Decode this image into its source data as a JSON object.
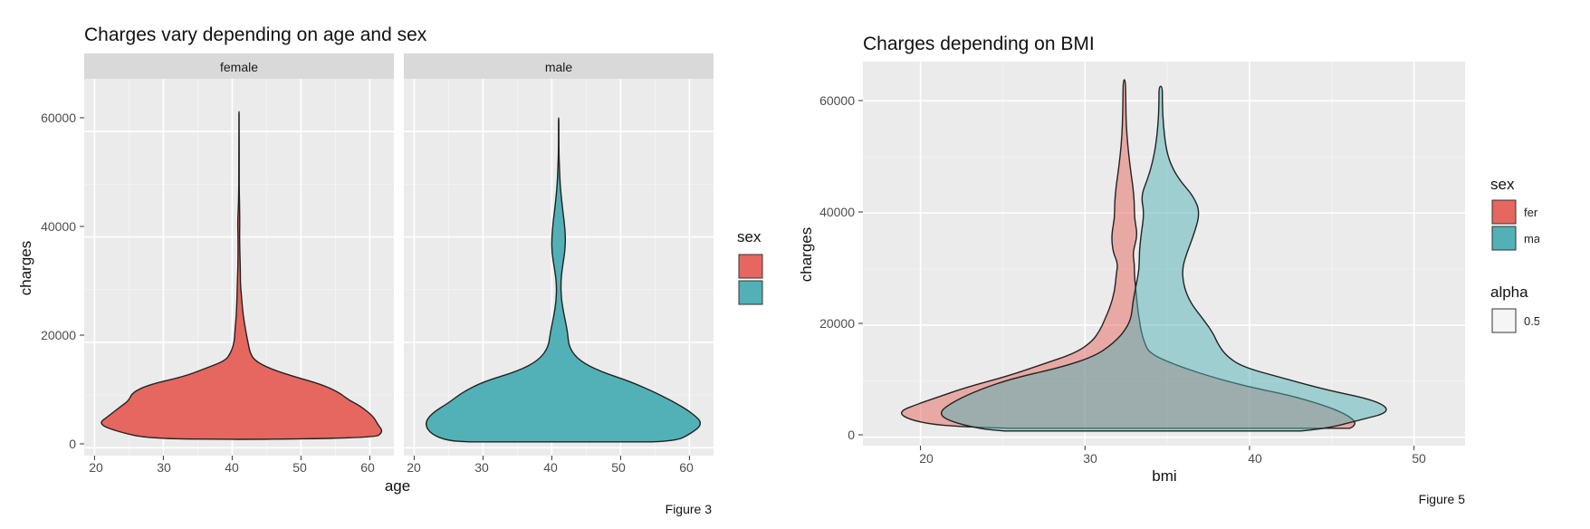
{
  "colors": {
    "female": "#e5675f",
    "male": "#52b1b6",
    "panel_bg": "#ebebeb",
    "strip_bg": "#d9d9d9",
    "grid": "#ffffff"
  },
  "chart_data": [
    {
      "type": "violin",
      "title": "Charges vary depending on age and sex",
      "caption": "Figure 3",
      "xlabel": "age",
      "ylabel": "charges",
      "xlim": [
        18.5,
        63.5
      ],
      "ylim": [
        -1500,
        70000
      ],
      "xticks": [
        20,
        30,
        40,
        50,
        60
      ],
      "yticks": [
        0,
        20000,
        40000,
        60000
      ],
      "legend": {
        "title": "sex",
        "position": "right",
        "entries": []
      },
      "facets": [
        {
          "label": "female",
          "color_key": "female",
          "center": 41,
          "ymin": 1600,
          "ymax": 63770,
          "profile": [
            [
              1600,
              0,
              0
            ],
            [
              1700,
              13,
              19.5
            ],
            [
              3000,
              17.5,
              21
            ],
            [
              4500,
              20.5,
              20.1
            ],
            [
              6000,
              19,
              19.5
            ],
            [
              8000,
              17,
              17.5
            ],
            [
              9000,
              16,
              16
            ],
            [
              10500,
              15.5,
              14.5
            ],
            [
              12000,
              13,
              12
            ],
            [
              13500,
              8,
              8
            ],
            [
              15000,
              5,
              4.5
            ],
            [
              16500,
              2,
              2.3
            ],
            [
              18000,
              1.2,
              1.6
            ],
            [
              20000,
              0.7,
              1.3
            ],
            [
              22000,
              0.6,
              1
            ],
            [
              25000,
              0.4,
              0.6
            ],
            [
              28000,
              0.3,
              0.4
            ],
            [
              31000,
              0.25,
              0.2
            ],
            [
              33000,
              0.2,
              0.2
            ],
            [
              36000,
              0.15,
              0.15
            ],
            [
              38000,
              0.15,
              0.1
            ],
            [
              40000,
              0.15,
              0.08
            ],
            [
              43000,
              0.2,
              0.1
            ],
            [
              45500,
              0.1,
              0.08
            ],
            [
              48000,
              0.05,
              0.04
            ],
            [
              52000,
              0.03,
              0.02
            ],
            [
              60000,
              0.02,
              0.02
            ],
            [
              63770,
              0.015,
              0.015
            ]
          ]
        },
        {
          "label": "male",
          "color_key": "male",
          "center": 41,
          "ymin": 1120,
          "ymax": 62590,
          "profile": [
            [
              1120,
              13,
              13.5
            ],
            [
              1300,
              16,
              17
            ],
            [
              2500,
              18.5,
              19
            ],
            [
              4500,
              19.5,
              21
            ],
            [
              6500,
              18.5,
              19.5
            ],
            [
              8500,
              16,
              17
            ],
            [
              10500,
              14,
              14
            ],
            [
              12500,
              11,
              10.5
            ],
            [
              14500,
              6,
              6
            ],
            [
              16500,
              3,
              3
            ],
            [
              19000,
              1.5,
              1.5
            ],
            [
              22000,
              1.2,
              1.3
            ],
            [
              25000,
              0.7,
              0.8
            ],
            [
              28000,
              0.35,
              0.4
            ],
            [
              31000,
              0.3,
              0.3
            ],
            [
              34000,
              0.6,
              0.5
            ],
            [
              37000,
              1.0,
              0.9
            ],
            [
              40000,
              1.0,
              1.0
            ],
            [
              43000,
              0.8,
              0.8
            ],
            [
              46000,
              0.5,
              0.5
            ],
            [
              50000,
              0.2,
              0.2
            ],
            [
              55000,
              0.05,
              0.05
            ],
            [
              58000,
              0.03,
              0.03
            ],
            [
              62590,
              0.02,
              0.02
            ]
          ]
        }
      ]
    },
    {
      "type": "violin",
      "title": "Charges depending on BMI",
      "caption": "Figure 5",
      "xlabel": "bmi",
      "ylabel": "charges",
      "xlim": [
        16.5,
        53.1
      ],
      "ylim": [
        -1500,
        67000
      ],
      "xticks": [
        20,
        30,
        40,
        50
      ],
      "yticks": [
        0,
        20000,
        40000,
        60000
      ],
      "legends": [
        {
          "title": "sex",
          "position": "right",
          "entries": [
            {
              "label": "fer",
              "color_key": "female"
            },
            {
              "label": "ma",
              "color_key": "male"
            }
          ]
        },
        {
          "title": "alpha",
          "position": "right",
          "entries": [
            {
              "label": "0.5",
              "color": "#f5f5f5"
            }
          ]
        }
      ],
      "series": [
        {
          "name": "female",
          "color_key": "female",
          "center": 32.4,
          "ymin": 1600,
          "ymax": 63770,
          "alpha": 0.5,
          "profile": [
            [
              1600,
              7,
              13.7
            ],
            [
              2000,
              11,
              14
            ],
            [
              3000,
              13,
              14
            ],
            [
              4500,
              13.8,
              13.2
            ],
            [
              6000,
              12.5,
              11.8
            ],
            [
              7500,
              11,
              10
            ],
            [
              9000,
              9.5,
              7.5
            ],
            [
              11000,
              7,
              5
            ],
            [
              13000,
              5,
              3
            ],
            [
              15000,
              3,
              1.5
            ],
            [
              17000,
              2,
              1.2
            ],
            [
              19000,
              1.5,
              1
            ],
            [
              21000,
              1.2,
              0.9
            ],
            [
              23000,
              0.9,
              0.8
            ],
            [
              26000,
              0.6,
              0.7
            ],
            [
              29000,
              0.5,
              0.6
            ],
            [
              31000,
              0.4,
              0.6
            ],
            [
              33000,
              0.7,
              0.5
            ],
            [
              36000,
              0.8,
              0.8
            ],
            [
              39000,
              0.6,
              0.6
            ],
            [
              42000,
              0.6,
              0.6
            ],
            [
              45000,
              0.5,
              0.5
            ],
            [
              48000,
              0.35,
              0.35
            ],
            [
              52000,
              0.2,
              0.2
            ],
            [
              56000,
              0.12,
              0.1
            ],
            [
              60000,
              0.1,
              0.08
            ],
            [
              63770,
              0.08,
              0.06
            ]
          ]
        },
        {
          "name": "male",
          "color_key": "male",
          "center": 34.6,
          "ymin": 1120,
          "ymax": 62590,
          "alpha": 0.5,
          "profile": [
            [
              1120,
              9.5,
              8.5
            ],
            [
              1500,
              11,
              10
            ],
            [
              3000,
              13,
              12
            ],
            [
              4500,
              13.5,
              14
            ],
            [
              6500,
              12.5,
              13.2
            ],
            [
              8500,
              11,
              10
            ],
            [
              10500,
              9,
              7.5
            ],
            [
              12500,
              6,
              5
            ],
            [
              14500,
              4,
              4
            ],
            [
              16500,
              3,
              3.5
            ],
            [
              18500,
              2.3,
              3.2
            ],
            [
              21000,
              1.8,
              2.6
            ],
            [
              24000,
              1.7,
              1.8
            ],
            [
              27000,
              1.5,
              1.4
            ],
            [
              30000,
              1.3,
              1.3
            ],
            [
              33000,
              1.3,
              1.6
            ],
            [
              36000,
              1.2,
              2
            ],
            [
              40000,
              1.0,
              2.4
            ],
            [
              43000,
              1.2,
              2
            ],
            [
              46000,
              0.8,
              1.1
            ],
            [
              49000,
              0.5,
              0.55
            ],
            [
              52000,
              0.3,
              0.3
            ],
            [
              56000,
              0.15,
              0.15
            ],
            [
              60000,
              0.1,
              0.1
            ],
            [
              62590,
              0.1,
              0.1
            ]
          ]
        }
      ]
    }
  ]
}
